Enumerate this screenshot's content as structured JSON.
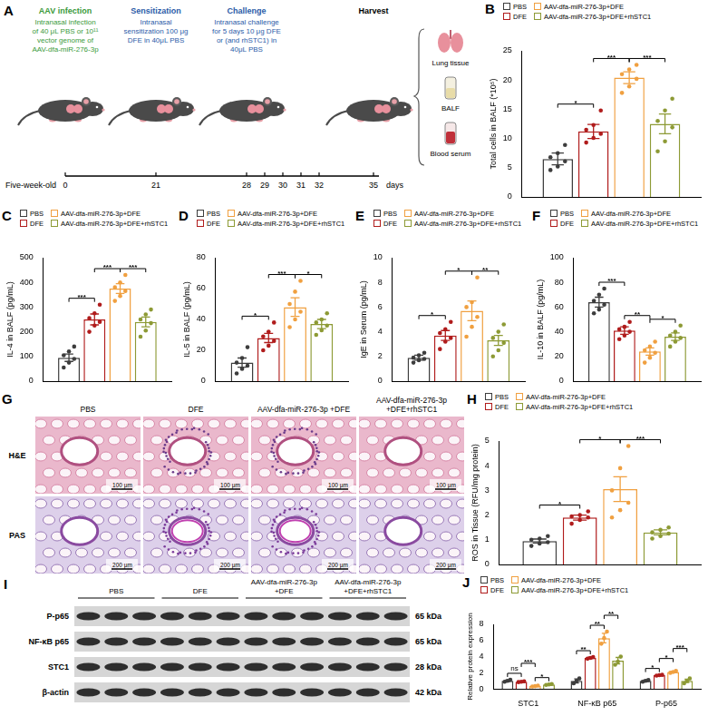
{
  "schematic": {
    "panel": "A",
    "stages": [
      {
        "title": "AAV infection",
        "text": "Intranasal infection of 40 μL PBS or 10¹¹ vector genome of AAV-dfa-miR-276-3p",
        "color": "#3a9a3a"
      },
      {
        "title": "Sensitization",
        "text": "Intranasal sensitization 100 μg DFE in 40μL PBS",
        "color": "#2b5ba8"
      },
      {
        "title": "Challenge",
        "text": "Intranasal challenge for 5 days 10 μg DFE or (and rhSTC1) in 40μL PBS",
        "color": "#2b5ba8"
      },
      {
        "title": "Harvest",
        "color": "#000000"
      }
    ],
    "samples": [
      "Lung tissue",
      "BALF",
      "Blood serum"
    ],
    "timeline": {
      "start_label": "Five-week-old",
      "days": [
        0,
        21,
        28,
        29,
        30,
        31,
        32,
        35
      ],
      "unit": "days"
    }
  },
  "chart_data": [
    {
      "panel": "B",
      "type": "bar",
      "y_label": "Total cells in BALF (*10⁵)",
      "categories": [
        null
      ],
      "series": [
        {
          "name": "PBS",
          "color": "#3d3d3d",
          "values": [
            6.5
          ],
          "errors": [
            1.0
          ],
          "points": [
            [
              4.6,
              5.2,
              6.1,
              6.8,
              7.5,
              8.9
            ]
          ]
        },
        {
          "name": "DFE",
          "color": "#b01c1c",
          "values": [
            11.2
          ],
          "errors": [
            1.2
          ],
          "points": [
            [
              9.3,
              10.1,
              10.8,
              11.5,
              12.3,
              14.8
            ]
          ]
        },
        {
          "name": "AAV-dfa-miR-276-3p+DFE",
          "color": "#f0a040",
          "values": [
            20.4
          ],
          "errors": [
            1.0
          ],
          "points": [
            [
              17.8,
              18.9,
              20.2,
              21.0,
              21.8,
              22.6
            ]
          ]
        },
        {
          "name": "AAV-dfa-miR-276-3p+DFE+rhSTC1",
          "color": "#8d9a35",
          "values": [
            12.5
          ],
          "errors": [
            1.7
          ],
          "points": [
            [
              7.8,
              9.5,
              11.9,
              13.0,
              14.8,
              16.8
            ]
          ]
        }
      ],
      "ylim": [
        0,
        25
      ],
      "yticks": [
        0,
        5,
        10,
        15,
        20,
        25
      ],
      "grid": false,
      "legend": "top",
      "tick_labels": "y",
      "comparisons": [
        {
          "category": 0,
          "pair": [
            0,
            1
          ],
          "label": "*"
        },
        {
          "category": 0,
          "pair": [
            1,
            2
          ],
          "label": "***"
        },
        {
          "category": 0,
          "pair": [
            2,
            3
          ],
          "label": "***"
        }
      ]
    },
    {
      "panel": "C",
      "type": "bar",
      "y_label": "IL-4 in BALF (pg/mL)",
      "categories": [
        null
      ],
      "series": [
        {
          "name": "PBS",
          "color": "#3d3d3d",
          "values": [
            95
          ],
          "errors": [
            15
          ],
          "points": [
            [
              55,
              75,
              90,
              105,
              120,
              140
            ]
          ]
        },
        {
          "name": "DFE",
          "color": "#b01c1c",
          "values": [
            250
          ],
          "errors": [
            22
          ],
          "points": [
            [
              200,
              225,
              240,
              255,
              275,
              310
            ]
          ]
        },
        {
          "name": "AAV-dfa-miR-276-3p+DFE",
          "color": "#f0a040",
          "values": [
            375
          ],
          "errors": [
            20
          ],
          "points": [
            [
              325,
              345,
              365,
              380,
              400,
              430
            ]
          ]
        },
        {
          "name": "AAV-dfa-miR-276-3p+DFE+rhSTC1",
          "color": "#8d9a35",
          "values": [
            240
          ],
          "errors": [
            20
          ],
          "points": [
            [
              180,
              205,
              235,
              250,
              270,
              290
            ]
          ]
        }
      ],
      "ylim": [
        0,
        500
      ],
      "yticks": [
        0,
        100,
        200,
        300,
        400,
        500
      ],
      "grid": false,
      "legend": "top",
      "tick_labels": "y",
      "comparisons": [
        {
          "category": 0,
          "pair": [
            0,
            1
          ],
          "label": "***"
        },
        {
          "category": 0,
          "pair": [
            1,
            2
          ],
          "label": "***"
        },
        {
          "category": 0,
          "pair": [
            2,
            3
          ],
          "label": "***"
        }
      ]
    },
    {
      "panel": "D",
      "type": "bar",
      "y_label": "IL-5 in BALF (pg/mL)",
      "categories": [
        null
      ],
      "series": [
        {
          "name": "PBS",
          "color": "#3d3d3d",
          "values": [
            12
          ],
          "errors": [
            3
          ],
          "points": [
            [
              5,
              8,
              10,
              12,
              15,
              22
            ]
          ]
        },
        {
          "name": "DFE",
          "color": "#b01c1c",
          "values": [
            28
          ],
          "errors": [
            3
          ],
          "points": [
            [
              20,
              23,
              26,
              29,
              32,
              38
            ]
          ]
        },
        {
          "name": "AAV-dfa-miR-276-3p+DFE",
          "color": "#f0a040",
          "values": [
            48
          ],
          "errors": [
            6
          ],
          "points": [
            [
              35,
              40,
              45,
              50,
              58,
              65
            ]
          ]
        },
        {
          "name": "AAV-dfa-miR-276-3p+DFE+rhSTC1",
          "color": "#8d9a35",
          "values": [
            37
          ],
          "errors": [
            3
          ],
          "points": [
            [
              30,
              33,
              36,
              38,
              40,
              44
            ]
          ]
        }
      ],
      "ylim": [
        0,
        80
      ],
      "yticks": [
        0,
        20,
        40,
        60,
        80
      ],
      "grid": false,
      "legend": "top",
      "tick_labels": "y",
      "comparisons": [
        {
          "category": 0,
          "pair": [
            0,
            1
          ],
          "label": "*"
        },
        {
          "category": 0,
          "pair": [
            1,
            2
          ],
          "label": "***"
        },
        {
          "category": 0,
          "pair": [
            2,
            3
          ],
          "label": "*"
        }
      ]
    },
    {
      "panel": "E",
      "type": "bar",
      "y_label": "IgE in Serum (pg/mL)",
      "categories": [
        null
      ],
      "series": [
        {
          "name": "PBS",
          "color": "#3d3d3d",
          "values": [
            1.9
          ],
          "errors": [
            0.2
          ],
          "points": [
            [
              1.5,
              1.7,
              1.8,
              1.9,
              2.1,
              2.3
            ]
          ]
        },
        {
          "name": "DFE",
          "color": "#b01c1c",
          "values": [
            3.7
          ],
          "errors": [
            0.4
          ],
          "points": [
            [
              2.6,
              3.2,
              3.5,
              3.9,
              4.2,
              4.8
            ]
          ]
        },
        {
          "name": "AAV-dfa-miR-276-3p+DFE",
          "color": "#f0a040",
          "values": [
            5.7
          ],
          "errors": [
            0.8
          ],
          "points": [
            [
              3.6,
              4.4,
              5.2,
              6.0,
              6.4,
              8.4
            ]
          ]
        },
        {
          "name": "AAV-dfa-miR-276-3p+DFE+rhSTC1",
          "color": "#8d9a35",
          "values": [
            3.3
          ],
          "errors": [
            0.4
          ],
          "points": [
            [
              2.0,
              2.5,
              3.1,
              3.5,
              4.0,
              4.6
            ]
          ]
        }
      ],
      "ylim": [
        0,
        10
      ],
      "yticks": [
        0,
        2,
        4,
        6,
        8,
        10
      ],
      "grid": false,
      "legend": "top",
      "tick_labels": "y",
      "comparisons": [
        {
          "category": 0,
          "pair": [
            0,
            1
          ],
          "label": "*"
        },
        {
          "category": 0,
          "pair": [
            1,
            2
          ],
          "label": "*"
        },
        {
          "category": 0,
          "pair": [
            2,
            3
          ],
          "label": "**"
        }
      ]
    },
    {
      "panel": "F",
      "type": "bar",
      "y_label": "IL-10 in BALF (pg/mL)",
      "categories": [
        null
      ],
      "series": [
        {
          "name": "PBS",
          "color": "#3d3d3d",
          "values": [
            64
          ],
          "errors": [
            4
          ],
          "points": [
            [
              55,
              58,
              62,
              65,
              70,
              75
            ]
          ]
        },
        {
          "name": "DFE",
          "color": "#b01c1c",
          "values": [
            41
          ],
          "errors": [
            3
          ],
          "points": [
            [
              34,
              37,
              40,
              42,
              44,
              48
            ]
          ]
        },
        {
          "name": "AAV-dfa-miR-276-3p+DFE",
          "color": "#f0a040",
          "values": [
            24
          ],
          "errors": [
            3
          ],
          "points": [
            [
              15,
              19,
              23,
              25,
              28,
              32
            ]
          ]
        },
        {
          "name": "AAV-dfa-miR-276-3p+DFE+rhSTC1",
          "color": "#8d9a35",
          "values": [
            36
          ],
          "errors": [
            3
          ],
          "points": [
            [
              28,
              32,
              35,
              37,
              40,
              45
            ]
          ]
        }
      ],
      "ylim": [
        0,
        100
      ],
      "yticks": [
        0,
        20,
        40,
        60,
        80,
        100
      ],
      "grid": false,
      "legend": "top",
      "tick_labels": "y",
      "comparisons": [
        {
          "category": 0,
          "pair": [
            0,
            1
          ],
          "label": "***"
        },
        {
          "category": 0,
          "pair": [
            1,
            2
          ],
          "label": "**"
        },
        {
          "category": 0,
          "pair": [
            2,
            3
          ],
          "label": "*"
        }
      ]
    },
    {
      "panel": "H",
      "type": "bar",
      "y_label": "ROS in Tissue (RFU/mg protein)",
      "categories": [
        null
      ],
      "series": [
        {
          "name": "PBS",
          "color": "#3d3d3d",
          "values": [
            0.95
          ],
          "errors": [
            0.08
          ],
          "points": [
            [
              0.75,
              0.85,
              0.9,
              1.0,
              1.05,
              1.15
            ]
          ]
        },
        {
          "name": "DFE",
          "color": "#b01c1c",
          "values": [
            1.9
          ],
          "errors": [
            0.1
          ],
          "points": [
            [
              1.65,
              1.8,
              1.9,
              1.95,
              2.0,
              2.15
            ]
          ]
        },
        {
          "name": "AAV-dfa-miR-276-3p+DFE",
          "color": "#f0a040",
          "values": [
            3.05
          ],
          "errors": [
            0.5
          ],
          "points": [
            [
              1.9,
              2.2,
              2.5,
              3.0,
              3.9,
              4.8
            ]
          ]
        },
        {
          "name": "AAV-dfa-miR-276-3p+DFE+rhSTC1",
          "color": "#8d9a35",
          "values": [
            1.3
          ],
          "errors": [
            0.1
          ],
          "points": [
            [
              1.05,
              1.15,
              1.25,
              1.3,
              1.4,
              1.5
            ]
          ]
        }
      ],
      "ylim": [
        0,
        5
      ],
      "yticks": [
        0,
        1,
        2,
        3,
        4,
        5
      ],
      "grid": false,
      "legend": "top",
      "tick_labels": "y",
      "comparisons": [
        {
          "category": 0,
          "pair": [
            0,
            1
          ],
          "label": "*"
        },
        {
          "category": 0,
          "pair": [
            1,
            2
          ],
          "label": "*"
        },
        {
          "category": 0,
          "pair": [
            2,
            3
          ],
          "label": "***"
        }
      ]
    },
    {
      "panel": "J",
      "type": "bar",
      "y_label": "Relative protein expression",
      "categories": [
        "STC1",
        "NF-κB p65",
        "P-p65"
      ],
      "series": [
        {
          "name": "PBS",
          "color": "#3d3d3d",
          "values": [
            1.0,
            1.0,
            1.0
          ],
          "errors": [
            0.1,
            0.25,
            0.1
          ],
          "points": [
            [
              0.9,
              1.0,
              1.15
            ],
            [
              0.7,
              1.0,
              1.3
            ],
            [
              0.9,
              1.0,
              1.1
            ]
          ]
        },
        {
          "name": "DFE",
          "color": "#b01c1c",
          "values": [
            0.9,
            3.85,
            1.7
          ],
          "errors": [
            0.05,
            0.1,
            0.05
          ],
          "points": [
            [
              0.85,
              0.9,
              0.95
            ],
            [
              3.75,
              3.85,
              3.95
            ],
            [
              1.65,
              1.7,
              1.75
            ]
          ]
        },
        {
          "name": "AAV-dfa-miR-276-3p+DFE",
          "color": "#f0a040",
          "values": [
            0.35,
            6.3,
            2.1
          ],
          "errors": [
            0.05,
            0.6,
            0.1
          ],
          "points": [
            [
              0.3,
              0.35,
              0.42
            ],
            [
              5.6,
              6.3,
              7.1
            ],
            [
              2.0,
              2.1,
              2.25
            ]
          ]
        },
        {
          "name": "AAV-dfa-miR-276-3p+DFE+rhSTC1",
          "color": "#8d9a35",
          "values": [
            0.55,
            3.5,
            1.0
          ],
          "errors": [
            0.05,
            0.4,
            0.2
          ],
          "points": [
            [
              0.5,
              0.55,
              0.62
            ],
            [
              3.0,
              3.4,
              4.0
            ],
            [
              0.7,
              1.0,
              1.3
            ]
          ]
        }
      ],
      "ylim": [
        0,
        8
      ],
      "yticks": [
        0,
        2,
        4,
        6,
        8
      ],
      "grid": false,
      "legend": "top",
      "tick_labels": true,
      "comparisons": [
        {
          "category": 0,
          "pair": [
            0,
            1
          ],
          "label": "ns"
        },
        {
          "category": 0,
          "pair": [
            1,
            2
          ],
          "label": "***"
        },
        {
          "category": 0,
          "pair": [
            2,
            3
          ],
          "label": "*"
        },
        {
          "category": 1,
          "pair": [
            0,
            1
          ],
          "label": "**"
        },
        {
          "category": 1,
          "pair": [
            1,
            2
          ],
          "label": "**"
        },
        {
          "category": 1,
          "pair": [
            2,
            3
          ],
          "label": "**"
        },
        {
          "category": 2,
          "pair": [
            0,
            1
          ],
          "label": "*"
        },
        {
          "category": 2,
          "pair": [
            1,
            2
          ],
          "label": "*"
        },
        {
          "category": 2,
          "pair": [
            2,
            3
          ],
          "label": "***"
        }
      ]
    }
  ],
  "histology": {
    "panel": "G",
    "columns": [
      "PBS",
      "DFE",
      "AAV-dfa-miR-276-3p +DFE",
      "AAV-dfa-miR-276-3p +DFE+rhSTC1"
    ],
    "rows": [
      {
        "label": "H&E",
        "scale_bar": "100 μm"
      },
      {
        "label": "PAS",
        "scale_bar": "200 μm"
      }
    ]
  },
  "western_blot": {
    "panel": "I",
    "groups": [
      "PBS",
      "DFE",
      "AAV-dfa-miR-276-3p +DFE",
      "AAV-dfa-miR-276-3p +DFE+rhSTC1"
    ],
    "lanes_per_group": 3,
    "rows": [
      {
        "label": "P-p65",
        "size": "65 kDa"
      },
      {
        "label": "NF-κB p65",
        "size": "65 kDa"
      },
      {
        "label": "STC1",
        "size": "28 kDa"
      },
      {
        "label": "β-actin",
        "size": "42 kDa"
      }
    ]
  }
}
